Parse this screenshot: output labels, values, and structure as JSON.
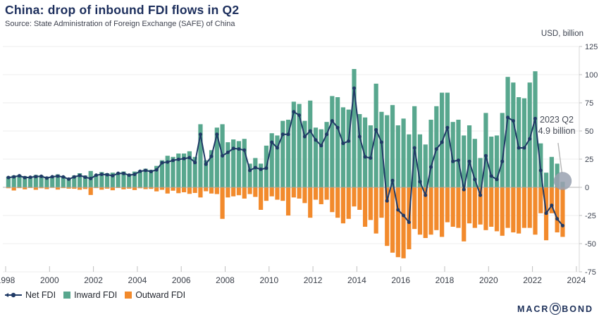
{
  "header": {
    "title": "China: drop of inbound FDI flows in Q2",
    "source": "Source: State Administration of Foreign Exchange (SAFE) of China"
  },
  "axis": {
    "y_unit_label": "USD, billion",
    "y_ticks": [
      125,
      100,
      75,
      50,
      25,
      0,
      -25,
      -50,
      -75
    ],
    "x_tick_years": [
      1998,
      2000,
      2002,
      2004,
      2006,
      2008,
      2010,
      2012,
      2014,
      2016,
      2018,
      2020,
      2022,
      2024
    ]
  },
  "legend": {
    "items": [
      {
        "label": "Net FDI",
        "marker": "line-dot",
        "color": "#203a66"
      },
      {
        "label": "Inward FDI",
        "marker": "square",
        "color": "#58a78e"
      },
      {
        "label": "Outward FDI",
        "marker": "square",
        "color": "#f28a2c"
      }
    ]
  },
  "annotation": {
    "line1": "2023 Q2",
    "line2": "4.9 billion"
  },
  "logo": {
    "pre": "MACR",
    "o": "O",
    "post": "BOND"
  },
  "colors": {
    "title_navy": "#1c2e5c",
    "net_line": "#203a66",
    "inward_green": "#58a78e",
    "outward_orange": "#f28a2c",
    "gridline": "#ededed",
    "zero_line": "#ababab",
    "highlight_circle": "#9aa2b1",
    "callout_line": "#b5b5b5"
  },
  "chart_data": {
    "type": "bar+line combo",
    "frequency": "quarterly",
    "x_start": "1998-Q1",
    "x_end": "2023-Q2",
    "title": "China: drop of inbound FDI flows in Q2",
    "ylabel": "USD, billion",
    "ylim": [
      -75,
      125
    ],
    "xlim_years": [
      1998,
      2024.2
    ],
    "grid": "horizontal",
    "legend_position": "bottom-left",
    "annotation": {
      "text": "2023 Q2 4.9 billion",
      "target_quarter": "2023-Q2",
      "target_series": "Inward FDI",
      "value": 4.9
    },
    "series": [
      {
        "name": "Inward FDI",
        "type": "bar",
        "color": "#58a78e",
        "values": [
          9.5,
          10.5,
          11,
          10,
          9.5,
          11,
          10.5,
          9.5,
          10,
          11.5,
          10,
          8.5,
          10.5,
          12.5,
          10.5,
          14.5,
          11.5,
          13.5,
          12.5,
          13,
          13,
          14,
          12,
          14,
          15,
          16.5,
          15.5,
          19,
          24,
          28,
          27,
          30,
          30,
          32,
          27,
          56,
          24,
          33,
          53,
          56,
          40,
          42.5,
          41,
          43,
          21,
          26,
          21,
          37,
          48,
          46,
          59,
          60,
          76,
          74,
          59,
          77,
          53,
          51.5,
          58,
          81,
          80,
          71,
          69,
          105,
          65,
          62,
          55,
          92,
          67,
          64,
          73,
          55,
          61,
          47,
          72,
          47,
          38,
          60,
          72,
          84,
          84,
          58,
          60,
          46,
          55,
          43,
          26,
          66,
          45,
          46,
          66,
          98,
          93,
          80,
          79,
          93,
          103,
          39,
          13,
          27,
          21,
          4.9
        ]
      },
      {
        "name": "Outward FDI",
        "type": "bar",
        "color": "#f28a2c",
        "values": [
          -0.8,
          -2.8,
          -0.7,
          -1.8,
          -0.6,
          -2.2,
          -0.8,
          -1.6,
          -0.5,
          -2,
          -0.7,
          -1.2,
          -1.3,
          -2.2,
          -1.5,
          -6.8,
          -0.7,
          -2.1,
          -1.2,
          -2.6,
          -0.6,
          -1.8,
          -1.2,
          -2.4,
          -0.8,
          -1.6,
          -1.4,
          -3.6,
          -2.2,
          -5.5,
          -3,
          -5.2,
          -4.4,
          -5.8,
          -5,
          -9,
          -3.5,
          -5.5,
          -6,
          -28,
          -9,
          -8,
          -7,
          -10,
          -6,
          -8.5,
          -20,
          -12,
          -8,
          -11,
          -12,
          -25,
          -9,
          -10,
          -14,
          -27,
          -11,
          -15,
          -11,
          -22,
          -27,
          -32,
          -28,
          -17,
          -20,
          -35,
          -29,
          -41,
          -27,
          -52,
          -58,
          -62,
          -63,
          -55,
          -37,
          -42,
          -45,
          -42,
          -38,
          -44,
          -31,
          -35,
          -36,
          -48,
          -32,
          -36,
          -33,
          -38,
          -35,
          -39,
          -43,
          -36,
          -40,
          -41,
          -36,
          -36,
          -42,
          -23,
          -47,
          -23,
          -40,
          -44
        ]
      },
      {
        "name": "Net FDI",
        "type": "line",
        "color": "#203a66",
        "values": [
          8.7,
          9.3,
          10.2,
          8.6,
          8.9,
          9.5,
          9.8,
          8.2,
          9.4,
          9.9,
          9.2,
          7.3,
          9.2,
          10.5,
          9,
          7.8,
          10.8,
          11.5,
          11.2,
          10.3,
          12.4,
          12.3,
          10.8,
          11.5,
          14.2,
          15,
          14,
          15.5,
          21.8,
          22.4,
          23.9,
          24.8,
          25.5,
          26.3,
          22,
          47,
          20.5,
          27.5,
          47,
          28,
          31,
          34.5,
          34,
          33,
          15,
          17.5,
          16,
          17,
          40,
          35,
          47,
          47,
          67,
          64,
          45,
          50,
          42,
          37,
          47,
          59,
          53,
          39,
          41,
          88,
          45,
          27,
          26,
          51,
          40,
          -12,
          6,
          -20,
          -25,
          -31,
          35,
          5,
          -7,
          18,
          34,
          40,
          53,
          23,
          24,
          -2,
          23,
          7,
          -7,
          28,
          10,
          7,
          23,
          62,
          59,
          35,
          35,
          43,
          61,
          15,
          -23,
          -16,
          -28,
          -34
        ]
      }
    ]
  }
}
